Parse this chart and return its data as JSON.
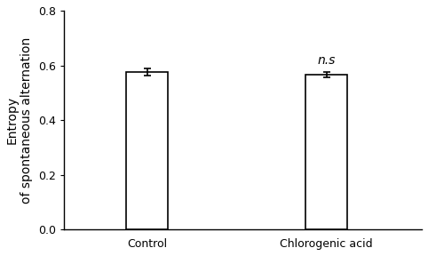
{
  "categories": [
    "Control",
    "Chlorogenic acid"
  ],
  "values": [
    0.576,
    0.567
  ],
  "errors": [
    0.013,
    0.01
  ],
  "bar_color": "#ffffff",
  "bar_edgecolor": "#000000",
  "bar_linewidth": 1.2,
  "bar_width": 0.35,
  "bar_positions": [
    1,
    2.5
  ],
  "xlim": [
    0.3,
    3.3
  ],
  "ylim": [
    0,
    0.8
  ],
  "yticks": [
    0,
    0.2,
    0.4,
    0.6,
    0.8
  ],
  "ylabel_line1": "Entropy",
  "ylabel_line2": "of spontaneous alternation",
  "annotation_text": "n.s",
  "annotation_bar_idx": 1,
  "annotation_fontsize": 10,
  "tick_fontsize": 9,
  "label_fontsize": 10,
  "error_capsize": 3,
  "error_linewidth": 1.2,
  "error_color": "#000000",
  "background_color": "#ffffff"
}
